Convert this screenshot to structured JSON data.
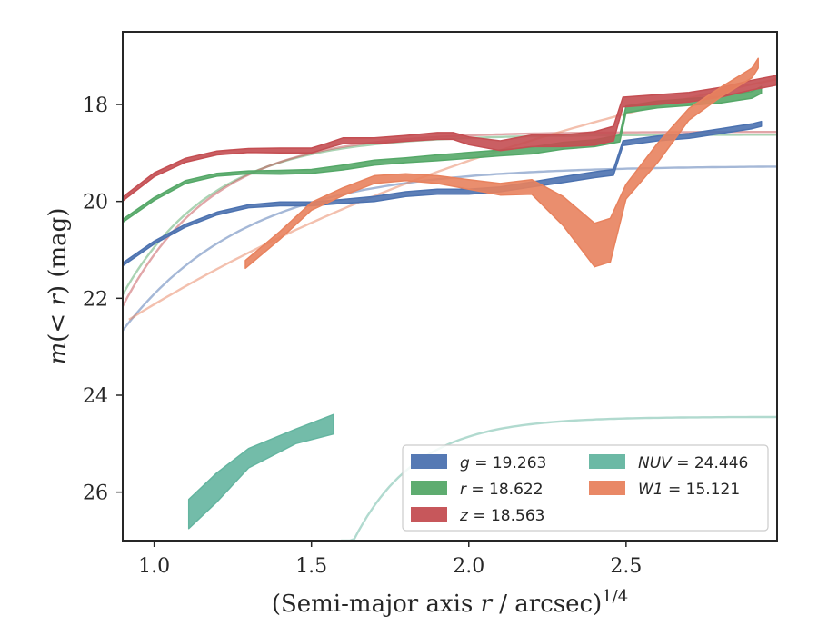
{
  "chart_data": {
    "type": "line",
    "xlabel": "(Semi-major axis r / arcsec)^1/4",
    "ylabel": "m(< r) (mag)",
    "xlim": [
      0.9,
      2.98
    ],
    "ylim": [
      27.0,
      16.5
    ],
    "y_inverted": true,
    "xticks": [
      1.0,
      1.5,
      2.0,
      2.5
    ],
    "xtick_labels": [
      "1.0",
      "1.5",
      "2.0",
      "2.5"
    ],
    "yticks": [
      18,
      20,
      22,
      24,
      26
    ],
    "ytick_labels": [
      "18",
      "20",
      "22",
      "24",
      "26"
    ],
    "grid": false,
    "legend_position": "lower-right",
    "series": [
      {
        "name": "g = 19.263",
        "legend_var": "g",
        "legend_val": "19.263",
        "color": "#4C72B0",
        "band": {
          "x": [
            0.9,
            1.0,
            1.1,
            1.2,
            1.3,
            1.4,
            1.5,
            1.6,
            1.7,
            1.8,
            1.9,
            2.0,
            2.1,
            2.2,
            2.3,
            2.4,
            2.46,
            2.49,
            2.6,
            2.7,
            2.8,
            2.9,
            2.93
          ],
          "mid": [
            21.3,
            20.85,
            20.5,
            20.25,
            20.1,
            20.05,
            20.05,
            20.0,
            19.95,
            19.85,
            19.8,
            19.8,
            19.75,
            19.65,
            19.55,
            19.45,
            19.4,
            18.8,
            18.7,
            18.65,
            18.55,
            18.45,
            18.4
          ],
          "halfwidth": [
            0.03,
            0.03,
            0.03,
            0.03,
            0.03,
            0.04,
            0.04,
            0.04,
            0.05,
            0.05,
            0.05,
            0.05,
            0.05,
            0.05,
            0.06,
            0.06,
            0.06,
            0.05,
            0.05,
            0.05,
            0.05,
            0.05,
            0.05
          ]
        },
        "model": {
          "x0": 0.9,
          "x1": 2.98,
          "m_inf": 19.263,
          "A": 3.4,
          "k": 2.5
        }
      },
      {
        "name": "r = 18.622",
        "legend_var": "r",
        "legend_val": "18.622",
        "color": "#55A868",
        "band": {
          "x": [
            0.9,
            1.0,
            1.1,
            1.2,
            1.3,
            1.4,
            1.5,
            1.6,
            1.7,
            1.8,
            1.9,
            2.0,
            2.1,
            2.2,
            2.3,
            2.4,
            2.48,
            2.5,
            2.6,
            2.7,
            2.8,
            2.9,
            2.93
          ],
          "mid": [
            20.4,
            19.95,
            19.6,
            19.45,
            19.4,
            19.4,
            19.38,
            19.3,
            19.2,
            19.15,
            19.1,
            19.05,
            19.0,
            18.95,
            18.85,
            18.8,
            18.7,
            18.1,
            18.0,
            17.95,
            17.9,
            17.8,
            17.7
          ],
          "halfwidth": [
            0.03,
            0.03,
            0.03,
            0.03,
            0.03,
            0.04,
            0.04,
            0.05,
            0.05,
            0.05,
            0.06,
            0.06,
            0.06,
            0.07,
            0.07,
            0.07,
            0.07,
            0.07,
            0.07,
            0.07,
            0.07,
            0.07,
            0.07
          ]
        },
        "model": {
          "x0": 0.9,
          "x1": 2.98,
          "m_inf": 18.622,
          "A": 3.3,
          "k": 3.5
        }
      },
      {
        "name": "z = 18.563",
        "legend_var": "z",
        "legend_val": "18.563",
        "color": "#C44E52",
        "band": {
          "x": [
            0.9,
            1.0,
            1.1,
            1.2,
            1.3,
            1.4,
            1.5,
            1.55,
            1.6,
            1.7,
            1.8,
            1.9,
            1.95,
            2.0,
            2.1,
            2.2,
            2.3,
            2.4,
            2.46,
            2.49,
            2.6,
            2.7,
            2.8,
            2.9,
            2.98
          ],
          "mid": [
            19.95,
            19.45,
            19.15,
            19.0,
            18.95,
            18.95,
            18.95,
            18.85,
            18.75,
            18.75,
            18.7,
            18.65,
            18.65,
            18.75,
            18.85,
            18.75,
            18.75,
            18.7,
            18.6,
            17.95,
            17.9,
            17.85,
            17.75,
            17.6,
            17.5
          ],
          "halfwidth": [
            0.04,
            0.04,
            0.04,
            0.04,
            0.04,
            0.05,
            0.05,
            0.05,
            0.06,
            0.06,
            0.06,
            0.07,
            0.07,
            0.08,
            0.1,
            0.12,
            0.12,
            0.14,
            0.15,
            0.1,
            0.1,
            0.1,
            0.1,
            0.1,
            0.1
          ]
        },
        "model": {
          "x0": 0.9,
          "x1": 2.98,
          "m_inf": 18.563,
          "A": 3.6,
          "k": 3.5
        }
      },
      {
        "name": "NUV = 24.446",
        "legend_var": "NUV",
        "legend_val": "24.446",
        "color": "#64B5A0",
        "band": {
          "x": [
            1.11,
            1.2,
            1.3,
            1.45,
            1.57
          ],
          "mid": [
            26.45,
            25.9,
            25.3,
            24.85,
            24.6
          ],
          "halfwidth": [
            0.3,
            0.3,
            0.2,
            0.15,
            0.2
          ]
        },
        "model": {
          "x0": 1.02,
          "x1": 2.98,
          "m_inf": 24.446,
          "A": 100,
          "k": 5.0
        }
      },
      {
        "name": "W1 = 15.121",
        "legend_var": "W1",
        "legend_val": "15.121",
        "color": "#E8825E",
        "band": {
          "x": [
            1.29,
            1.4,
            1.5,
            1.6,
            1.7,
            1.8,
            1.9,
            2.0,
            2.1,
            2.2,
            2.3,
            2.4,
            2.45,
            2.5,
            2.6,
            2.7,
            2.8,
            2.9,
            2.92
          ],
          "mid": [
            21.3,
            20.7,
            20.1,
            19.8,
            19.55,
            19.5,
            19.55,
            19.65,
            19.75,
            19.7,
            20.2,
            20.9,
            20.8,
            19.8,
            19.0,
            18.2,
            17.75,
            17.35,
            17.15
          ],
          "halfwidth": [
            0.08,
            0.08,
            0.08,
            0.08,
            0.08,
            0.07,
            0.08,
            0.1,
            0.12,
            0.15,
            0.3,
            0.45,
            0.45,
            0.15,
            0.2,
            0.12,
            0.1,
            0.1,
            0.1
          ]
        },
        "model": {
          "x0": 0.92,
          "x1": 2.98,
          "m_inf": 15.121,
          "A": 7.4,
          "k": 0.55
        }
      }
    ]
  }
}
